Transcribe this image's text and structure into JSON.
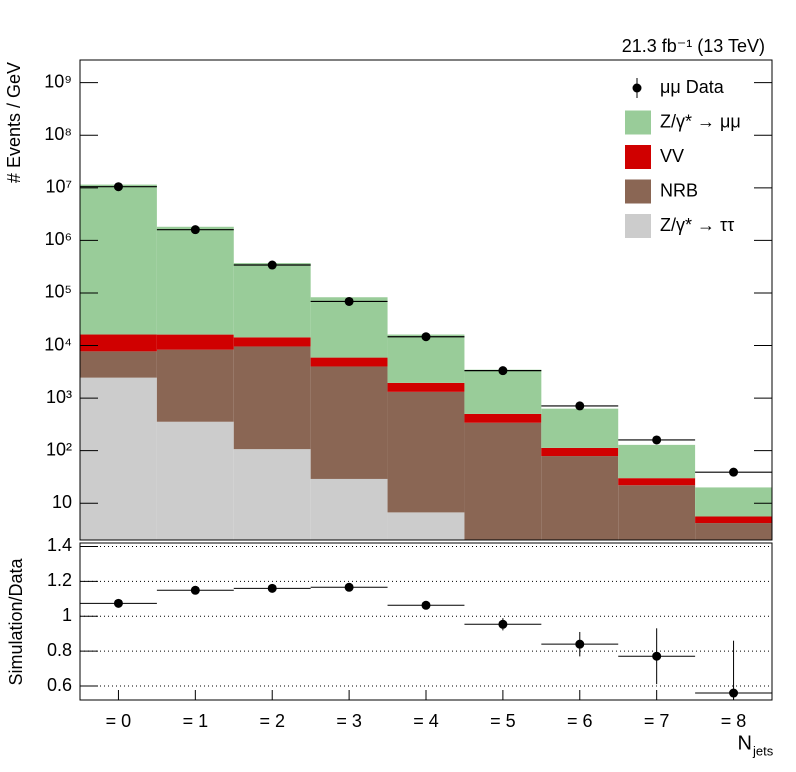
{
  "chart_data": [
    {
      "type": "stacked_histogram",
      "annotation": "21.3 fb⁻¹ (13 TeV)",
      "y_label": "# Events / GeV",
      "log_y": true,
      "legend": "upper right",
      "bins": [
        -0.5,
        0.5,
        1.5,
        2.5,
        3.5,
        4.5,
        5.5,
        6.5,
        7.5,
        8.5
      ],
      "ylim": [
        2,
        2700000000
      ],
      "yticks": [
        10,
        {
          "value": 100,
          "label": "10²"
        },
        {
          "value": 1000,
          "label": "10³"
        },
        {
          "value": 10000,
          "label": "10⁴"
        },
        {
          "value": 100000,
          "label": "10⁵"
        },
        {
          "value": 1000000,
          "label": "10⁶"
        },
        {
          "value": 10000000,
          "label": "10⁷"
        },
        {
          "value": 100000000,
          "label": "10⁸"
        },
        {
          "value": 1000000000,
          "label": "10⁹"
        }
      ],
      "series": [
        {
          "name": "Z/γ* → ττ",
          "color": "#cccccc",
          "values": [
            2450,
            355,
            107,
            29,
            6.7,
            0,
            0,
            0,
            0
          ]
        },
        {
          "name": "NRB",
          "color": "#8a6654",
          "values": [
            5300,
            8000,
            9500,
            3970,
            1310,
            340,
            79,
            22,
            4.2
          ]
        },
        {
          "name": "VV",
          "color": "#d00000",
          "values": [
            8450,
            7800,
            4700,
            1900,
            630,
            160,
            34,
            8,
            1.4
          ]
        },
        {
          "name": "Z/γ* → μμ",
          "color": "#99cc99",
          "values": [
            11500000,
            1800000,
            356000,
            77000,
            14250,
            2970,
            517,
            99,
            14.4
          ]
        }
      ],
      "data": {
        "name": "μμ Data",
        "color": "#000000",
        "values": [
          10500000,
          1600000,
          340000,
          69000,
          14700,
          3330,
          710,
          160,
          39
        ]
      }
    },
    {
      "type": "errorbar",
      "y_label": "Simulation/Data",
      "categories": [
        "= 0",
        "= 1",
        "= 2",
        "= 3",
        "= 4",
        "= 5",
        "= 6",
        "= 7",
        "= 8"
      ],
      "x_label": "N",
      "x_label_sub": "jets",
      "ylim": [
        0.52,
        1.42
      ],
      "yticks": [
        0.6,
        0.8,
        1,
        1.2,
        1.4
      ],
      "grid": true,
      "color": "#000000",
      "values": [
        1.074,
        1.149,
        1.16,
        1.166,
        1.063,
        0.954,
        0.84,
        0.771,
        0.56
      ],
      "errors": [
        0.005,
        0.005,
        0.005,
        0.008,
        0.01,
        0.035,
        0.07,
        0.16,
        0.3
      ]
    }
  ]
}
